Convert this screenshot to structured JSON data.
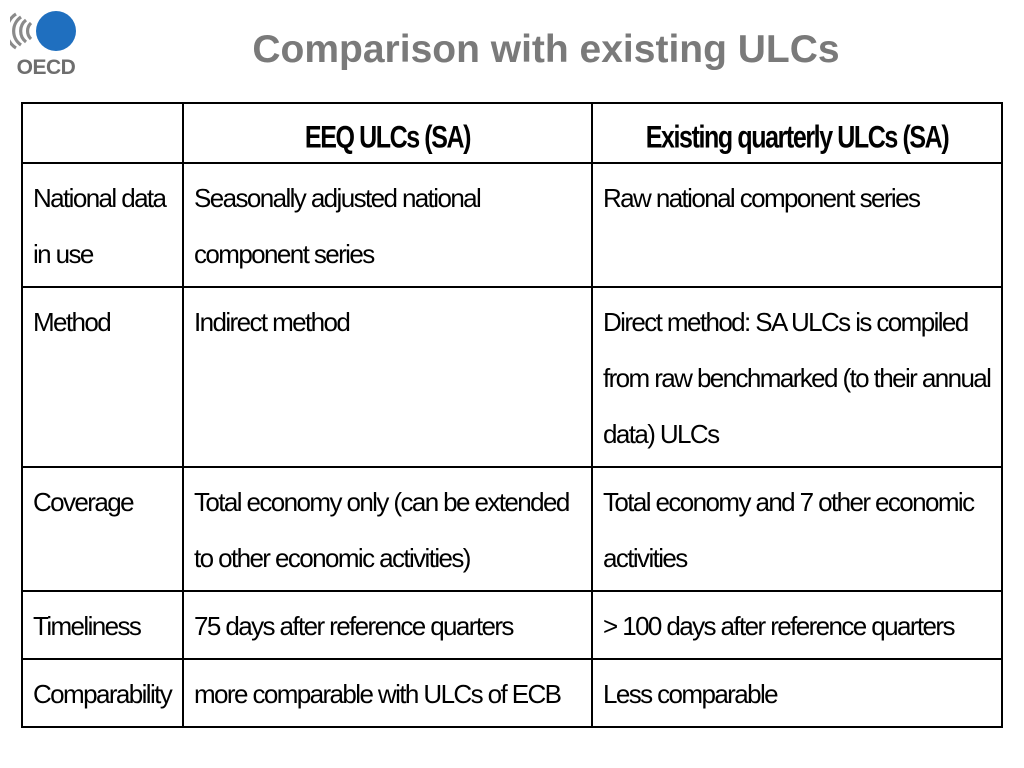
{
  "logo": {
    "text": "OECD"
  },
  "title": "Comparison with existing ULCs",
  "table": {
    "headers": [
      "",
      "EEQ ULCs (SA)",
      "Existing quarterly ULCs (SA)"
    ],
    "rows": [
      {
        "label": "National data in use",
        "eeq": "Seasonally adjusted national component series",
        "existing": "Raw national component series"
      },
      {
        "label": "Method",
        "eeq": "Indirect method",
        "existing": "Direct method: SA ULCs is compiled from raw benchmarked (to their annual data) ULCs"
      },
      {
        "label": "Coverage",
        "eeq": "Total economy only (can be extended to other economic activities)",
        "existing": "Total economy and 7 other economic activities"
      },
      {
        "label": "Timeliness",
        "eeq": "75 days after reference quarters",
        "existing": "> 100 days after reference quarters"
      },
      {
        "label": "Comparability",
        "eeq": "more comparable with ULCs of ECB",
        "existing": "Less comparable"
      }
    ]
  },
  "colors": {
    "title": "#7a7a7a",
    "logo_blue": "#1f6fbf",
    "logo_grey": "#8a8a8a",
    "border": "#000000"
  }
}
